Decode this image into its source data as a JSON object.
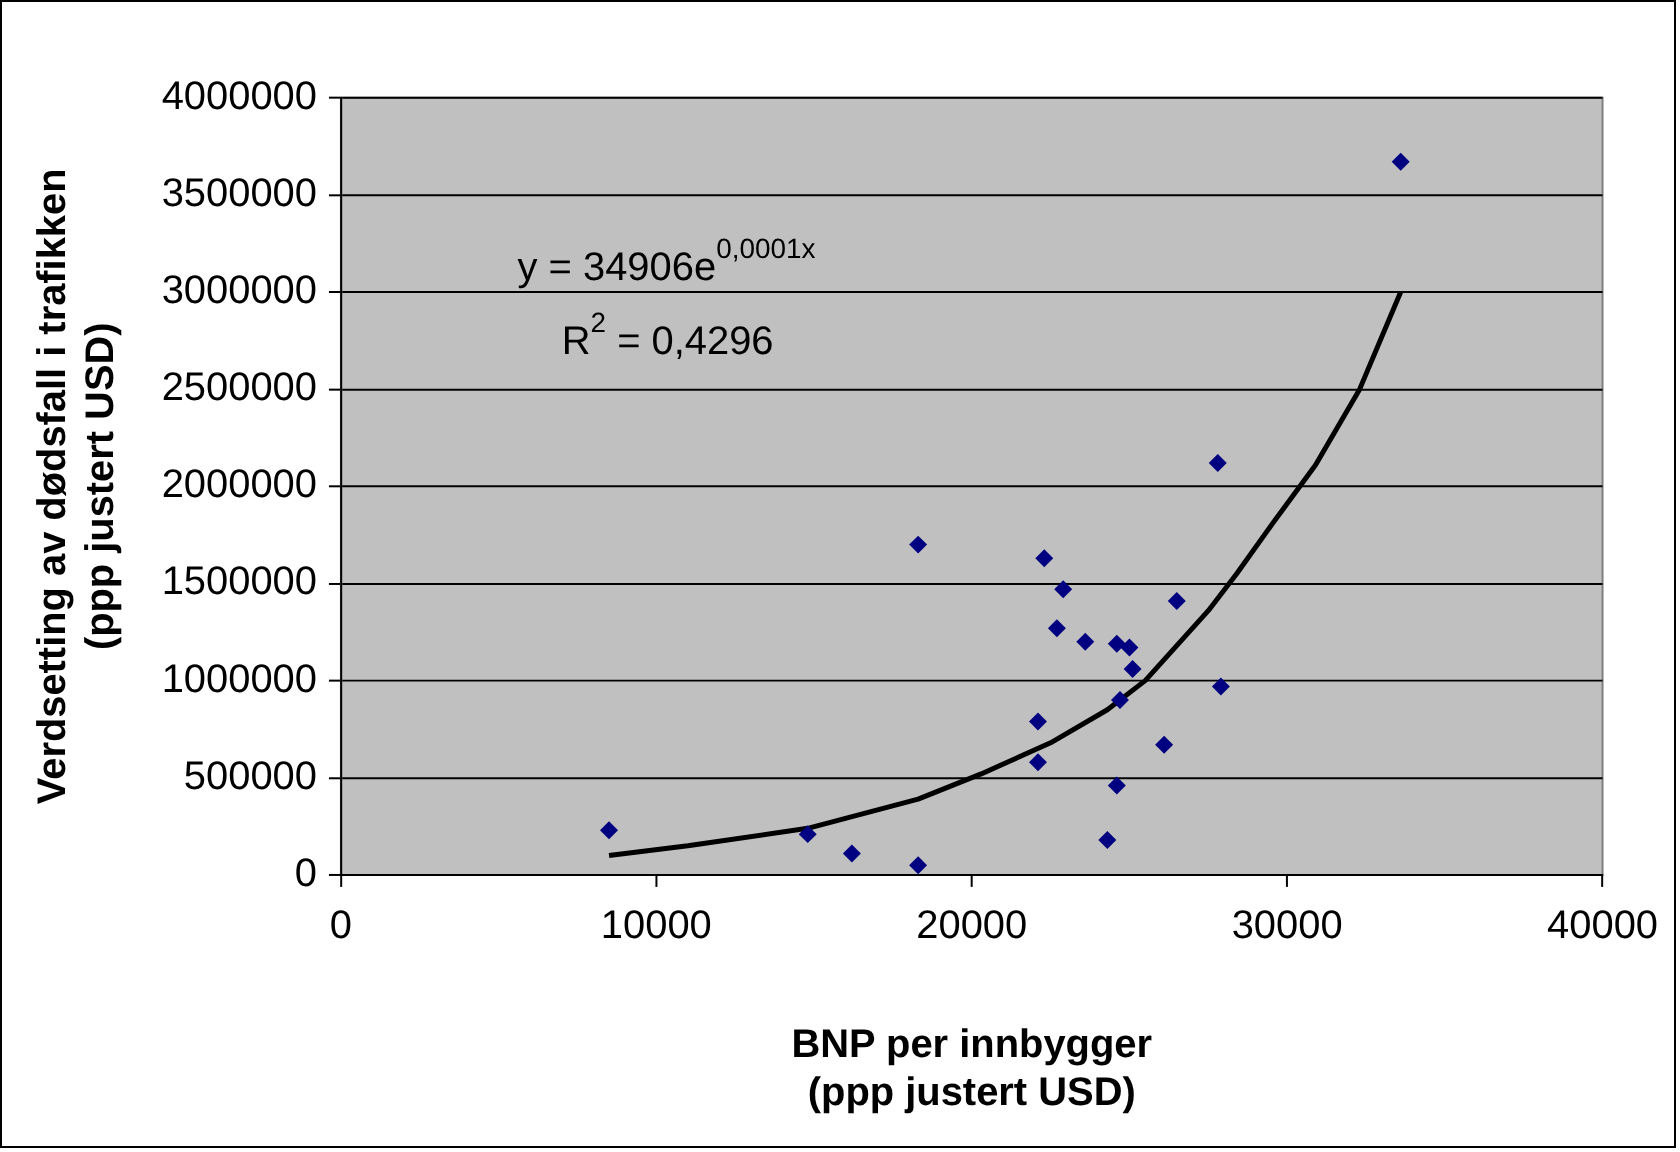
{
  "chart_data": {
    "type": "scatter",
    "xlabel": "BNP per innbygger\n(ppp justert USD)",
    "ylabel": "Verdsetting av dødsfall i trafikken\n(ppp justert USD)",
    "xlim": [
      0,
      40000
    ],
    "xticks": [
      0,
      10000,
      20000,
      30000,
      40000
    ],
    "ylim": [
      0,
      4000000
    ],
    "yticks": [
      0,
      500000,
      1000000,
      1500000,
      2000000,
      2500000,
      3000000,
      3500000,
      4000000
    ],
    "grid": "y",
    "legend": false,
    "marker": "diamond",
    "series": [
      {
        "color": "#000080",
        "x": [
          8500,
          14800,
          16200,
          18300,
          18300,
          22300,
          22900,
          22700,
          23600,
          24600,
          25000,
          25100,
          26500,
          24700,
          22100,
          22100,
          26100,
          24600,
          24300,
          27900,
          27800,
          33600
        ],
        "values": [
          230000,
          210000,
          110000,
          1700000,
          50000,
          1630000,
          1470000,
          1270000,
          1200000,
          1190000,
          1170000,
          1060000,
          1410000,
          900000,
          790000,
          580000,
          670000,
          460000,
          180000,
          970000,
          2120000,
          3670000
        ]
      },
      {
        "type": "line",
        "color": "#000000",
        "marker": "none",
        "line_style": "solid",
        "x": [
          8500,
          11000,
          14800,
          18300,
          20300,
          22500,
          24300,
          25500,
          26500,
          27500,
          28400,
          29500,
          30900,
          32300,
          33600
        ],
        "values": [
          100000,
          150000,
          240000,
          390000,
          520000,
          680000,
          850000,
          1000000,
          1180000,
          1360000,
          1550000,
          1800000,
          2110000,
          2500000,
          3000000
        ]
      }
    ],
    "annotations": [
      "y = 34906e$^{0,0001x}$",
      "R$^{2}$ = 0,4296"
    ]
  }
}
